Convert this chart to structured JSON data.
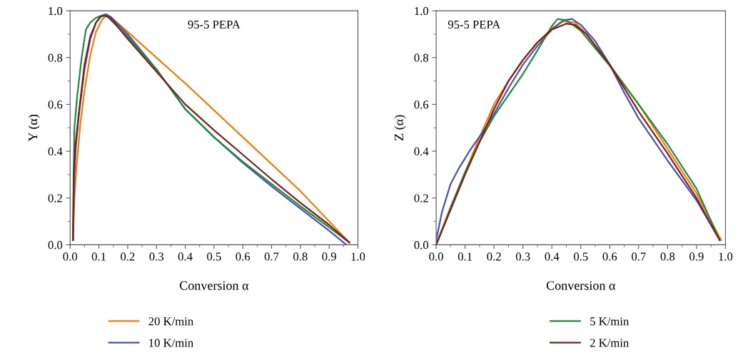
{
  "chart_data": [
    {
      "type": "line",
      "xlabel": "Conversion α",
      "ylabel": "Y (α)",
      "annotations": [
        "95-5 PEPA"
      ],
      "legend": "bottom",
      "grid": false,
      "xlim": [
        0.0,
        1.0
      ],
      "ylim": [
        0.0,
        1.0
      ],
      "xticks": [
        {
          "value": 0.0,
          "label": "0.0"
        },
        {
          "value": 0.1,
          "label": "0.1"
        },
        {
          "value": 0.2,
          "label": "0.2"
        },
        {
          "value": 0.3,
          "label": "0.3"
        },
        {
          "value": 0.4,
          "label": "0.4"
        },
        {
          "value": 0.5,
          "label": "0.5"
        },
        {
          "value": 0.6,
          "label": "0.6"
        },
        {
          "value": 0.7,
          "label": "0.7"
        },
        {
          "value": 0.8,
          "label": "0.8"
        },
        {
          "value": 0.9,
          "label": "0.9"
        },
        {
          "value": 1.0,
          "label": "1.0"
        }
      ],
      "yticks": [
        {
          "value": 0.0,
          "label": "0.0"
        },
        {
          "value": 0.2,
          "label": "0.2"
        },
        {
          "value": 0.4,
          "label": "0.4"
        },
        {
          "value": 0.6,
          "label": "0.6"
        },
        {
          "value": 0.8,
          "label": "0.8"
        },
        {
          "value": 1.0,
          "label": "1.0"
        }
      ],
      "series": [
        {
          "name": "20 K/min",
          "color": "#f07f09",
          "x": [
            0.01,
            0.015,
            0.02,
            0.035,
            0.05,
            0.07,
            0.09,
            0.11,
            0.125,
            0.14,
            0.2,
            0.3,
            0.4,
            0.5,
            0.6,
            0.7,
            0.8,
            0.9,
            0.97
          ],
          "values": [
            0.02,
            0.2,
            0.3,
            0.51,
            0.66,
            0.81,
            0.91,
            0.96,
            0.98,
            0.975,
            0.91,
            0.8,
            0.69,
            0.575,
            0.46,
            0.345,
            0.23,
            0.1,
            0.01
          ]
        },
        {
          "name": "10 K/min",
          "color": "#4a4fb0",
          "x": [
            0.01,
            0.015,
            0.02,
            0.03,
            0.05,
            0.07,
            0.09,
            0.11,
            0.125,
            0.14,
            0.2,
            0.3,
            0.4,
            0.5,
            0.6,
            0.7,
            0.8,
            0.9,
            0.96
          ],
          "values": [
            0.02,
            0.3,
            0.42,
            0.55,
            0.75,
            0.88,
            0.95,
            0.98,
            0.985,
            0.975,
            0.9,
            0.75,
            0.58,
            0.46,
            0.35,
            0.25,
            0.155,
            0.06,
            0.0
          ]
        },
        {
          "name": "5 K/min",
          "color": "#1e8a3c",
          "x": [
            0.01,
            0.012,
            0.015,
            0.025,
            0.04,
            0.055,
            0.07,
            0.09,
            0.11,
            0.13,
            0.2,
            0.3,
            0.4,
            0.5,
            0.6,
            0.7,
            0.8,
            0.9,
            0.97
          ],
          "values": [
            0.02,
            0.3,
            0.5,
            0.64,
            0.8,
            0.92,
            0.95,
            0.97,
            0.98,
            0.975,
            0.89,
            0.75,
            0.58,
            0.46,
            0.355,
            0.26,
            0.165,
            0.075,
            0.01
          ]
        },
        {
          "name": "2 K/min",
          "color": "#7f1d1d",
          "x": [
            0.01,
            0.013,
            0.018,
            0.03,
            0.05,
            0.07,
            0.09,
            0.105,
            0.12,
            0.14,
            0.2,
            0.3,
            0.4,
            0.5,
            0.6,
            0.7,
            0.8,
            0.9,
            0.97
          ],
          "values": [
            0.02,
            0.3,
            0.42,
            0.56,
            0.77,
            0.89,
            0.95,
            0.975,
            0.98,
            0.97,
            0.88,
            0.74,
            0.6,
            0.49,
            0.385,
            0.28,
            0.18,
            0.085,
            0.01
          ]
        }
      ]
    },
    {
      "type": "line",
      "xlabel": "Conversion α",
      "ylabel": "Z (α)",
      "annotations": [
        "95-5 PEPA"
      ],
      "grid": false,
      "xlim": [
        0.0,
        1.0
      ],
      "ylim": [
        0.0,
        1.0
      ],
      "xticks": [
        {
          "value": 0.0,
          "label": "0.0"
        },
        {
          "value": 0.1,
          "label": "0.1"
        },
        {
          "value": 0.2,
          "label": "0.2"
        },
        {
          "value": 0.3,
          "label": "0.3"
        },
        {
          "value": 0.4,
          "label": "0.4"
        },
        {
          "value": 0.5,
          "label": "0.5"
        },
        {
          "value": 0.6,
          "label": "0.6"
        },
        {
          "value": 0.7,
          "label": "0.7"
        },
        {
          "value": 0.8,
          "label": "0.8"
        },
        {
          "value": 0.9,
          "label": "0.9"
        },
        {
          "value": 1.0,
          "label": "1.0"
        }
      ],
      "yticks": [
        {
          "value": 0.0,
          "label": "0.0"
        },
        {
          "value": 0.2,
          "label": "0.2"
        },
        {
          "value": 0.4,
          "label": "0.4"
        },
        {
          "value": 0.6,
          "label": "0.6"
        },
        {
          "value": 0.8,
          "label": "0.8"
        },
        {
          "value": 1.0,
          "label": "1.0"
        }
      ],
      "series": [
        {
          "name": "20 K/min",
          "color": "#f07f09",
          "x": [
            0.0,
            0.05,
            0.1,
            0.15,
            0.2,
            0.25,
            0.3,
            0.35,
            0.4,
            0.44,
            0.48,
            0.52,
            0.6,
            0.7,
            0.8,
            0.9,
            0.985
          ],
          "values": [
            0.0,
            0.16,
            0.31,
            0.46,
            0.6,
            0.7,
            0.79,
            0.865,
            0.925,
            0.955,
            0.95,
            0.9,
            0.77,
            0.6,
            0.41,
            0.22,
            0.02
          ]
        },
        {
          "name": "10 K/min",
          "color": "#4a4fb0",
          "x": [
            0.0,
            0.02,
            0.05,
            0.08,
            0.12,
            0.16,
            0.2,
            0.25,
            0.3,
            0.35,
            0.4,
            0.44,
            0.47,
            0.5,
            0.55,
            0.6,
            0.65,
            0.7,
            0.8,
            0.9,
            0.98
          ],
          "values": [
            0.02,
            0.14,
            0.26,
            0.33,
            0.41,
            0.48,
            0.56,
            0.67,
            0.77,
            0.85,
            0.92,
            0.96,
            0.965,
            0.94,
            0.87,
            0.77,
            0.65,
            0.54,
            0.36,
            0.19,
            0.02
          ]
        },
        {
          "name": "5 K/min",
          "color": "#1e8a3c",
          "x": [
            0.0,
            0.05,
            0.1,
            0.15,
            0.2,
            0.25,
            0.3,
            0.35,
            0.4,
            0.42,
            0.45,
            0.5,
            0.55,
            0.6,
            0.7,
            0.8,
            0.9,
            0.98
          ],
          "values": [
            0.0,
            0.16,
            0.31,
            0.44,
            0.55,
            0.64,
            0.73,
            0.83,
            0.935,
            0.965,
            0.96,
            0.915,
            0.84,
            0.765,
            0.6,
            0.43,
            0.24,
            0.02
          ]
        },
        {
          "name": "2 K/min",
          "color": "#7f1d1d",
          "x": [
            0.0,
            0.05,
            0.1,
            0.15,
            0.2,
            0.25,
            0.3,
            0.35,
            0.4,
            0.45,
            0.48,
            0.52,
            0.6,
            0.7,
            0.8,
            0.9,
            0.98
          ],
          "values": [
            0.0,
            0.15,
            0.3,
            0.44,
            0.58,
            0.7,
            0.79,
            0.865,
            0.92,
            0.945,
            0.94,
            0.9,
            0.77,
            0.57,
            0.39,
            0.2,
            0.02
          ]
        }
      ]
    }
  ]
}
